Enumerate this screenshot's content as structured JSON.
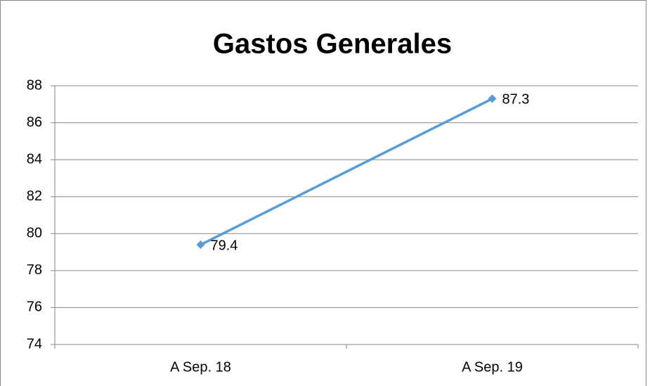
{
  "chart_data": {
    "type": "line",
    "title": "Gastos Generales",
    "categories": [
      "A Sep. 18",
      "A Sep. 19"
    ],
    "values": [
      79.4,
      87.3
    ],
    "color": "#5b9bd5",
    "ylim": [
      74,
      88
    ],
    "yticks": [
      74,
      76,
      78,
      80,
      82,
      84,
      86,
      88
    ],
    "grid": true,
    "data_labels": true
  }
}
